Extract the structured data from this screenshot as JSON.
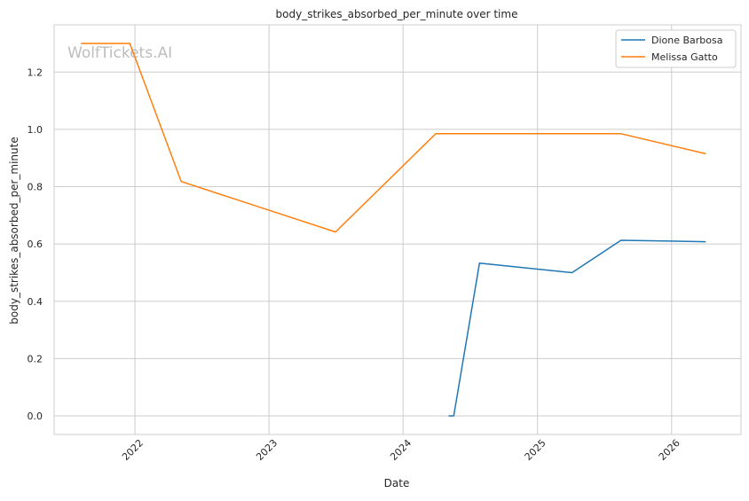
{
  "chart_data": {
    "type": "line",
    "title": "body_strikes_absorbed_per_minute over time",
    "xlabel": "Date",
    "ylabel": "body_strikes_absorbed_per_minute",
    "watermark": "WolfTickets.AI",
    "xlim": [
      "2021-05-26",
      "2026-07-09"
    ],
    "ylim": [
      -0.065,
      1.365
    ],
    "x_ticks": [
      "2022",
      "2023",
      "2024",
      "2025",
      "2026"
    ],
    "y_ticks": [
      "0.0",
      "0.2",
      "0.4",
      "0.6",
      "0.8",
      "1.0",
      "1.2"
    ],
    "grid": true,
    "legend_position": "top-right",
    "series": [
      {
        "name": "Dione Barbosa",
        "color": "#1f77b4",
        "points": [
          {
            "x": "2024-05-04",
            "y": 0.0
          },
          {
            "x": "2024-05-18",
            "y": 0.0
          },
          {
            "x": "2024-07-27",
            "y": 0.533
          },
          {
            "x": "2025-04-05",
            "y": 0.5
          },
          {
            "x": "2025-08-16",
            "y": 0.613
          },
          {
            "x": "2026-04-04",
            "y": 0.608
          }
        ]
      },
      {
        "name": "Melissa Gatto",
        "color": "#ff7f0e",
        "points": [
          {
            "x": "2021-08-07",
            "y": 1.3
          },
          {
            "x": "2021-12-18",
            "y": 1.3
          },
          {
            "x": "2022-05-07",
            "y": 0.818
          },
          {
            "x": "2023-07-01",
            "y": 0.642
          },
          {
            "x": "2024-03-30",
            "y": 0.985
          },
          {
            "x": "2025-08-16",
            "y": 0.985
          },
          {
            "x": "2026-04-04",
            "y": 0.915
          }
        ]
      }
    ]
  }
}
